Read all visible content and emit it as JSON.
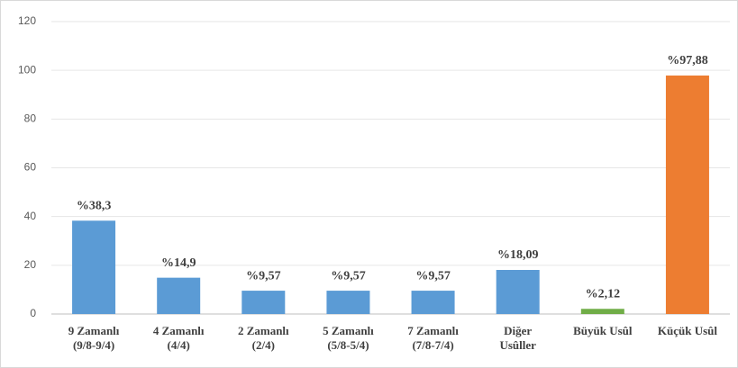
{
  "chart_data": {
    "type": "bar",
    "categories": [
      [
        "9 Zamanlı",
        "(9/8-9/4)"
      ],
      [
        "4 Zamanlı",
        "(4/4)"
      ],
      [
        "2 Zamanlı",
        "(2/4)"
      ],
      [
        "5 Zamanlı",
        "(5/8-5/4)"
      ],
      [
        "7 Zamanlı",
        "(7/8-7/4)"
      ],
      [
        "Diğer",
        "Usûller"
      ],
      [
        "Büyük Usûl"
      ],
      [
        "Küçük Usûl"
      ]
    ],
    "values": [
      38.3,
      14.9,
      9.57,
      9.57,
      9.57,
      18.09,
      2.12,
      97.88
    ],
    "value_labels": [
      "%38,3",
      "%14,9",
      "%9,57",
      "%9,57",
      "%9,57",
      "%18,09",
      "%2,12",
      "%97,88"
    ],
    "colors": [
      "#5b9bd5",
      "#5b9bd5",
      "#5b9bd5",
      "#5b9bd5",
      "#5b9bd5",
      "#5b9bd5",
      "#70ad47",
      "#ed7d31"
    ],
    "ylim": [
      0,
      120
    ],
    "yticks": [
      0,
      20,
      40,
      60,
      80,
      100,
      120
    ],
    "grid": true
  }
}
